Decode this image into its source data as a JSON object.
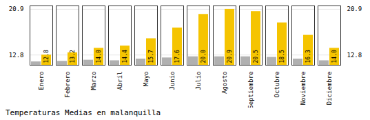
{
  "chart_data": {
    "type": "bar",
    "title": "Temperaturas Medias en malanquilla",
    "categories": [
      "Enero",
      "Febrero",
      "Marzo",
      "Abril",
      "Mayo",
      "Junio",
      "Julio",
      "Agosto",
      "Septiembre",
      "Octubre",
      "Noviembre",
      "Diciembre"
    ],
    "series": [
      {
        "color": "#B0B0B0",
        "values": [
          11.6,
          11.7,
          11.9,
          11.8,
          12.1,
          12.3,
          12.5,
          12.5,
          12.5,
          12.4,
          12.1,
          11.8
        ]
      },
      {
        "color": "#F5C400",
        "values": [
          12.8,
          13.2,
          14.0,
          14.4,
          15.7,
          17.6,
          20.0,
          20.9,
          20.5,
          18.5,
          16.3,
          14.0
        ],
        "value_labels": [
          "12.8",
          "13.2",
          "14.0",
          "14.4",
          "15.7",
          "17.6",
          "20.0",
          "20.9",
          "20.5",
          "18.5",
          "16.3",
          "14.0"
        ]
      }
    ],
    "ylim": [
      11.0,
      21.5
    ],
    "yticks": [
      12.8,
      20.9
    ],
    "grid": true,
    "data_labels": true
  }
}
